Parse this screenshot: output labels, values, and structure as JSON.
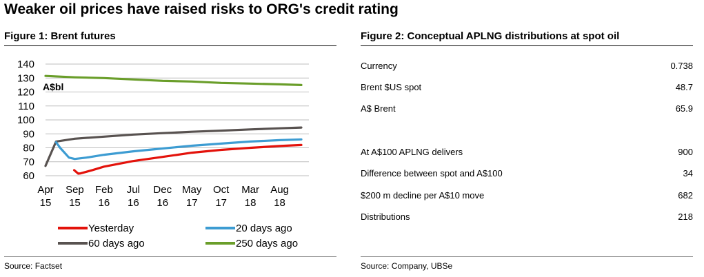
{
  "main_title": "Weaker oil prices have raised risks to ORG's credit rating",
  "figure1": {
    "title": "Figure 1: Brent futures",
    "source": "Source:  Factset"
  },
  "figure2": {
    "title": "Figure 2: Conceptual APLNG distributions at spot oil",
    "source": "Source:  Company, UBSe",
    "rows_top": [
      {
        "label": "Currency",
        "value": "0.738"
      },
      {
        "label": "Brent $US spot",
        "value": "48.7"
      },
      {
        "label": "A$ Brent",
        "value": "65.9"
      }
    ],
    "rows_bottom": [
      {
        "label": "At A$100 APLNG delivers",
        "value": "900"
      },
      {
        "label": "Difference between spot and A$100",
        "value": "34"
      },
      {
        "label": "$200 m decline per A$10 move",
        "value": "682"
      },
      {
        "label": "Distributions",
        "value": "218"
      }
    ]
  },
  "chart_data": {
    "type": "line",
    "title": "Brent futures",
    "ylabel": "A$bl",
    "xlabel": "",
    "ylim": [
      60,
      140
    ],
    "y_ticks": [
      60,
      70,
      80,
      90,
      100,
      110,
      120,
      130,
      140
    ],
    "xlim": [
      0,
      45
    ],
    "x_ticks": [
      {
        "x": 0,
        "line1": "Apr",
        "line2": "15"
      },
      {
        "x": 5,
        "line1": "Sep",
        "line2": "15"
      },
      {
        "x": 10,
        "line1": "Feb",
        "line2": "16"
      },
      {
        "x": 15,
        "line1": "Jul",
        "line2": "16"
      },
      {
        "x": 20,
        "line1": "Dec",
        "line2": "16"
      },
      {
        "x": 25,
        "line1": "May",
        "line2": "17"
      },
      {
        "x": 30,
        "line1": "Oct",
        "line2": "17"
      },
      {
        "x": 35,
        "line1": "Mar",
        "line2": "18"
      },
      {
        "x": 40,
        "line1": "Aug",
        "line2": "18"
      }
    ],
    "grid": true,
    "legend_position": "bottom",
    "series": [
      {
        "name": "Yesterday",
        "color": "#e3120b",
        "x": [
          4.9,
          5.6,
          6,
          8,
          10,
          15,
          20,
          25,
          30,
          35,
          40,
          43.7
        ],
        "y": [
          64,
          61.5,
          61.7,
          64,
          66.5,
          70.5,
          73.5,
          76.5,
          78.5,
          80,
          81.3,
          82
        ]
      },
      {
        "name": "20 days ago",
        "color": "#3d9cd2",
        "x": [
          1.8,
          2.5,
          4,
          5,
          7,
          10,
          15,
          20,
          25,
          30,
          35,
          40,
          43.7
        ],
        "y": [
          84,
          80,
          73,
          72,
          73,
          75,
          77.5,
          79.5,
          81.5,
          83,
          84.5,
          85.5,
          86
        ]
      },
      {
        "name": "60 days ago",
        "color": "#585250",
        "x": [
          0,
          1.8,
          5,
          10,
          15,
          20,
          25,
          30,
          35,
          40,
          43.7
        ],
        "y": [
          67,
          84.5,
          86.5,
          88,
          89.5,
          90.5,
          91.5,
          92.3,
          93.2,
          94,
          94.5
        ]
      },
      {
        "name": "250 days ago",
        "color": "#6a9e2a",
        "x": [
          0,
          5,
          10,
          15,
          20,
          25,
          30,
          35,
          40,
          43.7
        ],
        "y": [
          131.5,
          130.5,
          130,
          129,
          128,
          127.5,
          126.5,
          126,
          125.5,
          125
        ]
      }
    ]
  }
}
